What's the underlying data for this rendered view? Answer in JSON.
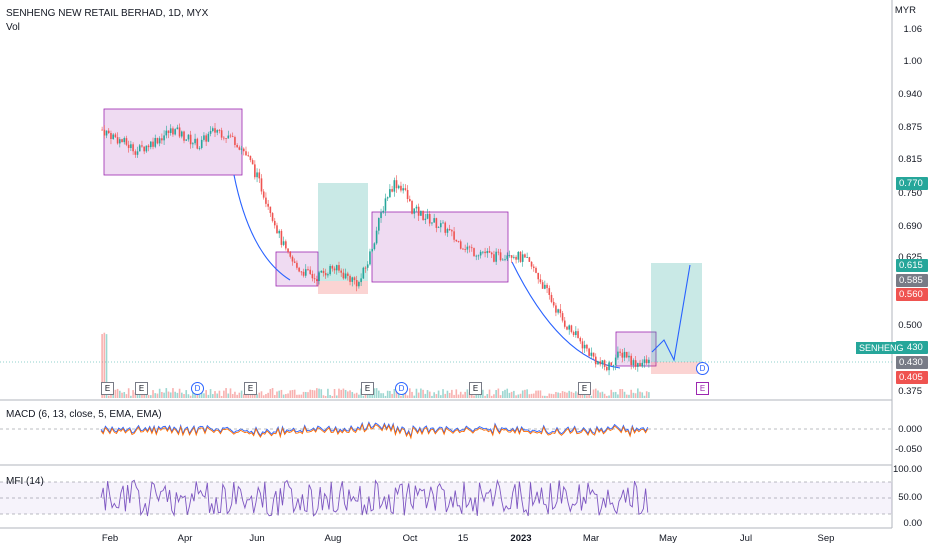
{
  "header": {
    "symbol_title": "SENHENG NEW RETAIL BERHAD, 1D, MYX",
    "vol_label": "Vol"
  },
  "price_axis": {
    "currency": "MYR",
    "ticks": [
      "1.06",
      "1.00",
      "0.940",
      "0.875",
      "0.815",
      "0.750",
      "0.690",
      "0.625",
      "0.500",
      "0.375"
    ]
  },
  "price_tags": {
    "tp1": "0.770",
    "tp2": "0.615",
    "entry": "0.585",
    "stop": "0.560",
    "last": "0.430",
    "last2": "0.430",
    "low": "0.405",
    "symbol": "SENHENG"
  },
  "macd": {
    "label": "MACD (6, 13, close, 5, EMA, EMA)",
    "ticks": [
      "0.000",
      "-0.050"
    ]
  },
  "mfi": {
    "label": "MFI (14)",
    "ticks": [
      "100.00",
      "50.00",
      "0.00"
    ]
  },
  "time_axis": {
    "labels": [
      "Feb",
      "Apr",
      "Jun",
      "Aug",
      "Oct",
      "15",
      "2023",
      "Mar",
      "May",
      "Jul",
      "Sep"
    ]
  },
  "events": [
    "E",
    "E",
    "D",
    "E",
    "E",
    "D",
    "E",
    "E",
    "D",
    "E"
  ],
  "colors": {
    "up": "#26a69a",
    "down": "#ef5350",
    "box_fill": "#e1bee7",
    "box_border": "#9c27b0",
    "curve": "#2962ff",
    "indicator": "#7e57c2"
  },
  "chart_data": {
    "type": "candlestick",
    "y_range": [
      0.375,
      1.06
    ],
    "series_close": [
      0.87,
      0.86,
      0.85,
      0.84,
      0.83,
      0.84,
      0.85,
      0.86,
      0.87,
      0.86,
      0.85,
      0.84,
      0.86,
      0.87,
      0.86,
      0.85,
      0.83,
      0.8,
      0.76,
      0.72,
      0.67,
      0.63,
      0.61,
      0.6,
      0.59,
      0.6,
      0.61,
      0.6,
      0.59,
      0.58,
      0.62,
      0.68,
      0.74,
      0.77,
      0.76,
      0.72,
      0.71,
      0.7,
      0.69,
      0.68,
      0.66,
      0.65,
      0.64,
      0.64,
      0.63,
      0.63,
      0.64,
      0.63,
      0.62,
      0.6,
      0.57,
      0.54,
      0.51,
      0.49,
      0.47,
      0.45,
      0.43,
      0.42,
      0.44,
      0.45,
      0.43,
      0.43
    ]
  }
}
